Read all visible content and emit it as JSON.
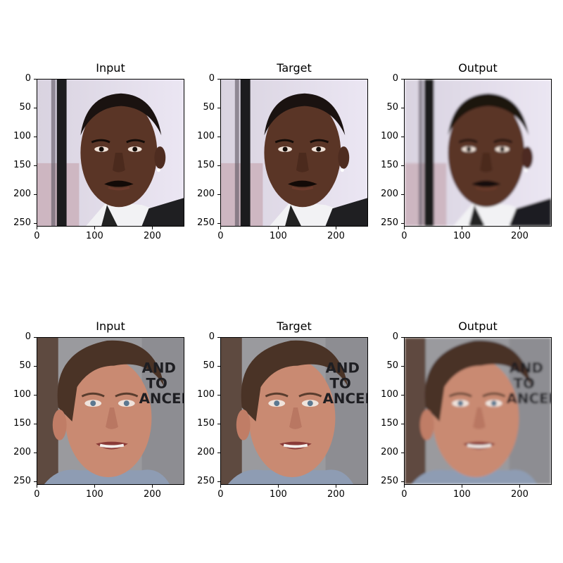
{
  "figure": {
    "columns": [
      "Input",
      "Target",
      "Output"
    ],
    "rows": [
      {
        "panels": [
          {
            "title": "Input",
            "subject": "man-dark-skin-mustache",
            "variant": "sharp"
          },
          {
            "title": "Target",
            "subject": "man-dark-skin-mustache",
            "variant": "sharp"
          },
          {
            "title": "Output",
            "subject": "man-dark-skin-mustache",
            "variant": "smooth"
          }
        ]
      },
      {
        "panels": [
          {
            "title": "Input",
            "subject": "man-light-skin-smiling",
            "variant": "sharp"
          },
          {
            "title": "Target",
            "subject": "man-light-skin-smiling",
            "variant": "sharp"
          },
          {
            "title": "Output",
            "subject": "man-light-skin-smiling",
            "variant": "smooth"
          }
        ]
      }
    ],
    "yticks": [
      "0",
      "50",
      "100",
      "150",
      "200",
      "250"
    ],
    "xticks": [
      "0",
      "100",
      "200"
    ],
    "image_size": 256
  }
}
